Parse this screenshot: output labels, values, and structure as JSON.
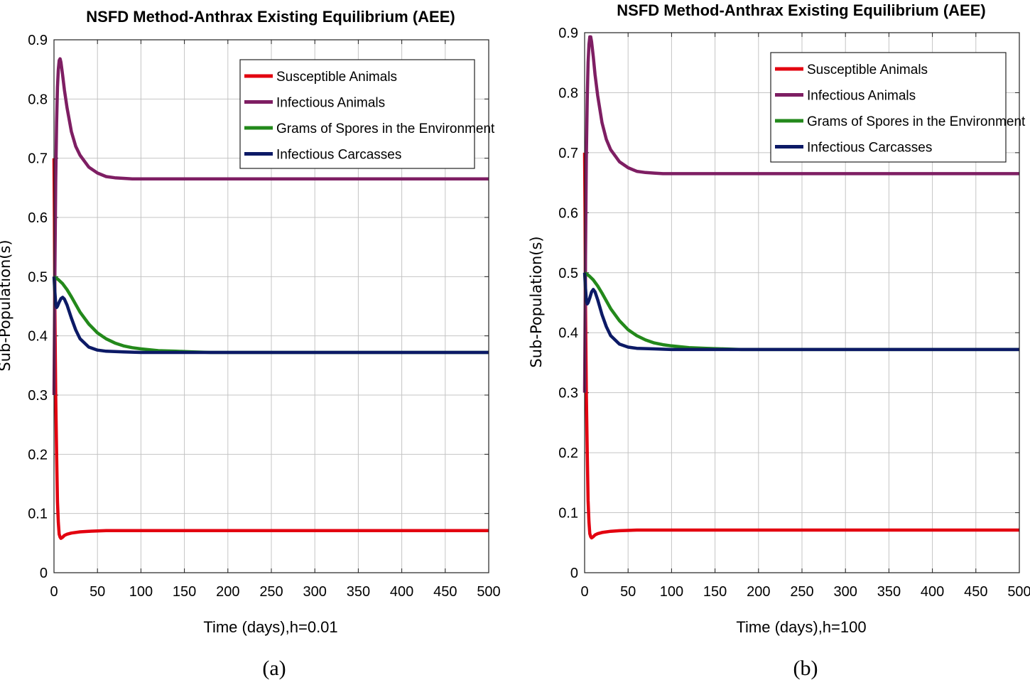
{
  "chart_data": [
    {
      "type": "line",
      "title": "NSFD Method-Anthrax Existing Equilibrium (AEE)",
      "xlabel": "Time (days),h=0.01",
      "ylabel": "Sub-Population(s)",
      "panel_label": "(a)",
      "xlim": [
        0,
        500
      ],
      "ylim": [
        0,
        0.9
      ],
      "xticks": [
        "0",
        "50",
        "100",
        "150",
        "200",
        "250",
        "300",
        "350",
        "400",
        "450",
        "500"
      ],
      "yticks": [
        "0",
        "0.1",
        "0.2",
        "0.3",
        "0.4",
        "0.5",
        "0.6",
        "0.7",
        "0.8",
        "0.9"
      ],
      "grid": true,
      "legend_position": "top-right",
      "series": [
        {
          "name": "Susceptible Animals",
          "color": "#e3000f",
          "x": [
            0,
            0.5,
            1,
            2,
            3,
            4,
            5,
            6,
            7,
            8,
            10,
            12,
            15,
            20,
            30,
            40,
            60,
            80,
            100,
            150,
            200,
            300,
            400,
            500
          ],
          "y": [
            0.7,
            0.6,
            0.45,
            0.3,
            0.2,
            0.12,
            0.085,
            0.065,
            0.06,
            0.058,
            0.06,
            0.063,
            0.065,
            0.067,
            0.069,
            0.07,
            0.071,
            0.071,
            0.071,
            0.071,
            0.071,
            0.071,
            0.071,
            0.071
          ]
        },
        {
          "name": "Infectious Animals",
          "color": "#7e1e63",
          "x": [
            0,
            1,
            2,
            3,
            4,
            5,
            6,
            7,
            8,
            10,
            12,
            15,
            20,
            25,
            30,
            40,
            50,
            60,
            70,
            80,
            90,
            100,
            150,
            200,
            300,
            400,
            500
          ],
          "y": [
            0.3,
            0.5,
            0.66,
            0.76,
            0.82,
            0.85,
            0.865,
            0.868,
            0.862,
            0.84,
            0.815,
            0.785,
            0.745,
            0.72,
            0.705,
            0.685,
            0.675,
            0.669,
            0.667,
            0.666,
            0.665,
            0.665,
            0.665,
            0.665,
            0.665,
            0.665,
            0.665
          ]
        },
        {
          "name": "Grams of Spores in the Environment",
          "color": "#23891b",
          "x": [
            0,
            5,
            10,
            15,
            20,
            30,
            40,
            50,
            60,
            70,
            80,
            90,
            100,
            120,
            140,
            160,
            180,
            200,
            250,
            300,
            400,
            500
          ],
          "y": [
            0.5,
            0.495,
            0.488,
            0.478,
            0.466,
            0.44,
            0.42,
            0.405,
            0.395,
            0.388,
            0.383,
            0.38,
            0.378,
            0.375,
            0.374,
            0.373,
            0.372,
            0.372,
            0.372,
            0.372,
            0.372,
            0.372
          ]
        },
        {
          "name": "Infectious Carcasses",
          "color": "#0c1a66",
          "x": [
            0,
            1,
            2,
            3,
            4,
            6,
            8,
            10,
            12,
            15,
            20,
            25,
            30,
            40,
            50,
            60,
            80,
            100,
            150,
            200,
            300,
            400,
            500
          ],
          "y": [
            0.5,
            0.475,
            0.455,
            0.448,
            0.45,
            0.457,
            0.463,
            0.465,
            0.462,
            0.452,
            0.43,
            0.41,
            0.395,
            0.381,
            0.376,
            0.374,
            0.373,
            0.372,
            0.372,
            0.372,
            0.372,
            0.372,
            0.372
          ]
        }
      ]
    },
    {
      "type": "line",
      "title": "NSFD Method-Anthrax Existing Equilibrium (AEE)",
      "xlabel": "Time (days),h=100",
      "ylabel": "Sub-Population(s)",
      "panel_label": "(b)",
      "xlim": [
        0,
        500
      ],
      "ylim": [
        0,
        0.9
      ],
      "xticks": [
        "0",
        "50",
        "100",
        "150",
        "200",
        "250",
        "300",
        "350",
        "400",
        "450",
        "500"
      ],
      "yticks": [
        "0",
        "0.1",
        "0.2",
        "0.3",
        "0.4",
        "0.5",
        "0.6",
        "0.7",
        "0.8",
        "0.9"
      ],
      "grid": true,
      "legend_position": "top-right",
      "series": [
        {
          "name": "Susceptible Animals",
          "color": "#e3000f",
          "x": [
            0,
            0.5,
            1,
            2,
            3,
            4,
            5,
            6,
            7,
            8,
            10,
            12,
            15,
            20,
            30,
            40,
            60,
            80,
            100,
            150,
            200,
            300,
            400,
            500
          ],
          "y": [
            0.7,
            0.6,
            0.45,
            0.3,
            0.2,
            0.12,
            0.085,
            0.065,
            0.06,
            0.058,
            0.06,
            0.063,
            0.065,
            0.067,
            0.069,
            0.07,
            0.071,
            0.071,
            0.071,
            0.071,
            0.071,
            0.071,
            0.071,
            0.071
          ]
        },
        {
          "name": "Infectious Animals",
          "color": "#7e1e63",
          "x": [
            0,
            1,
            2,
            3,
            4,
            5,
            6,
            7,
            8,
            10,
            12,
            15,
            20,
            25,
            30,
            40,
            50,
            60,
            70,
            80,
            90,
            100,
            150,
            200,
            300,
            400,
            500
          ],
          "y": [
            0.3,
            0.52,
            0.69,
            0.79,
            0.85,
            0.88,
            0.893,
            0.893,
            0.885,
            0.86,
            0.83,
            0.795,
            0.75,
            0.722,
            0.705,
            0.685,
            0.675,
            0.669,
            0.667,
            0.666,
            0.665,
            0.665,
            0.665,
            0.665,
            0.665,
            0.665,
            0.665
          ]
        },
        {
          "name": "Grams of Spores in the Environment",
          "color": "#23891b",
          "x": [
            0,
            5,
            10,
            15,
            20,
            30,
            40,
            50,
            60,
            70,
            80,
            90,
            100,
            120,
            140,
            160,
            180,
            200,
            250,
            300,
            400,
            500
          ],
          "y": [
            0.5,
            0.495,
            0.488,
            0.478,
            0.466,
            0.44,
            0.42,
            0.405,
            0.395,
            0.388,
            0.383,
            0.38,
            0.378,
            0.375,
            0.374,
            0.373,
            0.372,
            0.372,
            0.372,
            0.372,
            0.372,
            0.372
          ]
        },
        {
          "name": "Infectious Carcasses",
          "color": "#0c1a66",
          "x": [
            0,
            1,
            2,
            3,
            4,
            6,
            8,
            10,
            12,
            15,
            20,
            25,
            30,
            40,
            50,
            60,
            80,
            100,
            150,
            200,
            300,
            400,
            500
          ],
          "y": [
            0.5,
            0.475,
            0.455,
            0.448,
            0.45,
            0.458,
            0.468,
            0.472,
            0.468,
            0.455,
            0.43,
            0.41,
            0.395,
            0.381,
            0.376,
            0.374,
            0.373,
            0.372,
            0.372,
            0.372,
            0.372,
            0.372,
            0.372
          ]
        }
      ]
    }
  ]
}
